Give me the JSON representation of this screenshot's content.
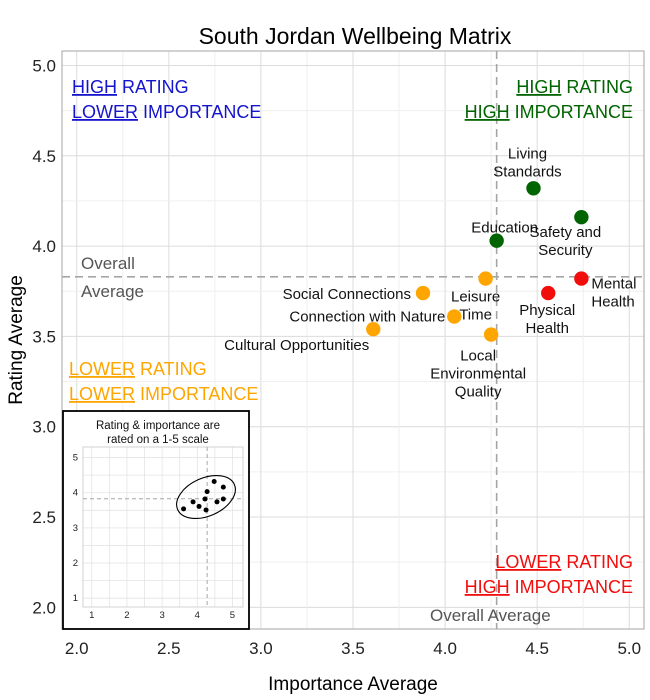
{
  "chart_data": {
    "type": "scatter",
    "title": "South Jordan Wellbeing Matrix",
    "xlabel": "Importance Average",
    "ylabel": "Rating Average",
    "xlim": [
      1.92,
      5.08
    ],
    "ylim": [
      1.88,
      5.08
    ],
    "xticks": [
      "2.0",
      "2.5",
      "3.0",
      "3.5",
      "4.0",
      "4.5",
      "5.0"
    ],
    "yticks": [
      "2.0",
      "2.5",
      "3.0",
      "3.5",
      "4.0",
      "4.5",
      "5.0"
    ],
    "grid": true,
    "overall_average": {
      "x": 4.28,
      "y": 3.83,
      "x_label": "Overall Average",
      "y_label_line1": "Overall",
      "y_label_line2": "Average"
    },
    "colors": {
      "high_high": "#006400",
      "low_high": "#f20d0d",
      "low_low": "#ffa500",
      "high_low": "#1414cc",
      "avg_line": "#a6a6a6",
      "avg_text": "#555555"
    },
    "quadrants": {
      "top_left": {
        "line1_u": "HIGH",
        "line1_rest": " RATING",
        "line2_u": "LOWER",
        "line2_rest": " IMPORTANCE"
      },
      "top_right": {
        "line1_u": "HIGH",
        "line1_rest": " RATING",
        "line2_u": "HIGH",
        "line2_rest": " IMPORTANCE"
      },
      "bottom_left": {
        "line1_u": "LOWER",
        "line1_rest": " RATING",
        "line2_u": "LOWER",
        "line2_rest": " IMPORTANCE"
      },
      "bottom_right": {
        "line1_u": "LOWER",
        "line1_rest": " RATING",
        "line2_u": "HIGH",
        "line2_rest": " IMPORTANCE"
      }
    },
    "points": [
      {
        "label": [
          "Living",
          "Standards"
        ],
        "x": 4.48,
        "y": 4.32,
        "color": "high_high"
      },
      {
        "label": [
          "Safety and",
          "Security"
        ],
        "x": 4.74,
        "y": 4.16,
        "color": "high_high"
      },
      {
        "label": [
          "Education"
        ],
        "x": 4.28,
        "y": 4.03,
        "color": "high_high"
      },
      {
        "label": [
          "Mental",
          "Health"
        ],
        "x": 4.74,
        "y": 3.82,
        "color": "low_high"
      },
      {
        "label": [
          "Physical",
          "Health"
        ],
        "x": 4.56,
        "y": 3.74,
        "color": "low_high"
      },
      {
        "label": [
          "Leisure",
          "Time"
        ],
        "x": 4.22,
        "y": 3.82,
        "color": "low_low"
      },
      {
        "label": [
          "Social Connections"
        ],
        "x": 3.88,
        "y": 3.74,
        "color": "low_low"
      },
      {
        "label": [
          "Connection with Nature"
        ],
        "x": 4.05,
        "y": 3.61,
        "color": "low_low"
      },
      {
        "label": [
          "Local",
          "Environmental",
          "Quality"
        ],
        "x": 4.25,
        "y": 3.51,
        "color": "low_low"
      },
      {
        "label": [
          "Cultural Opportunities"
        ],
        "x": 3.61,
        "y": 3.54,
        "color": "low_low"
      }
    ],
    "inset": {
      "caption_line1": "Rating & importance are",
      "caption_line2": "rated on a 1-5 scale",
      "ticks": [
        "1",
        "2",
        "3",
        "4",
        "5"
      ],
      "lim": [
        0.75,
        5.3
      ],
      "avg": {
        "x": 4.28,
        "y": 3.83
      },
      "points": [
        {
          "x": 3.61,
          "y": 3.54
        },
        {
          "x": 3.88,
          "y": 3.74
        },
        {
          "x": 4.05,
          "y": 3.61
        },
        {
          "x": 4.22,
          "y": 3.82
        },
        {
          "x": 4.25,
          "y": 3.51
        },
        {
          "x": 4.28,
          "y": 4.03
        },
        {
          "x": 4.48,
          "y": 4.32
        },
        {
          "x": 4.56,
          "y": 3.74
        },
        {
          "x": 4.74,
          "y": 4.16
        },
        {
          "x": 4.74,
          "y": 3.82
        }
      ]
    }
  }
}
